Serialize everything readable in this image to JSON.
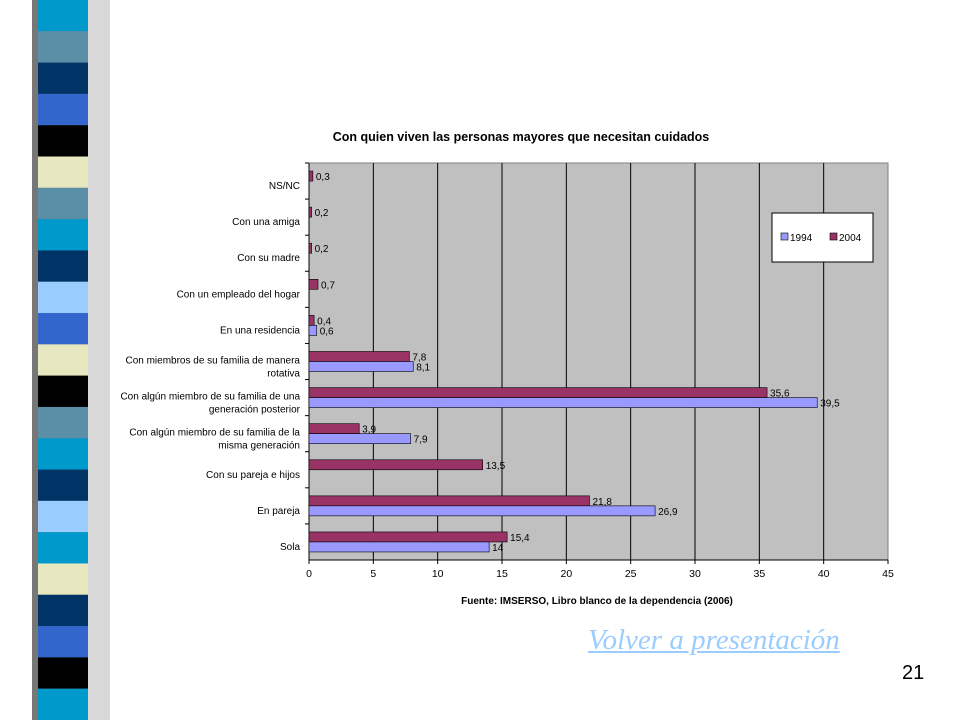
{
  "slide": {
    "link_label": "Volver a presentación",
    "page_number": "21",
    "decorative_strip_colors": [
      "#0099cc",
      "#5b8fa8",
      "#003366",
      "#3366cc",
      "#000000",
      "#e8e8c0",
      "#5b8fa8",
      "#0099cc",
      "#003366",
      "#99ccff",
      "#3366cc",
      "#e8e8c0",
      "#000000",
      "#5b8fa8",
      "#0099cc",
      "#003366",
      "#99ccff",
      "#0099cc",
      "#e8e8c0",
      "#003366",
      "#3366cc",
      "#000000",
      "#0099cc"
    ]
  },
  "chart_data": {
    "type": "bar",
    "orientation": "horizontal",
    "title": "Con quien viven las personas mayores que necesitan cuidados",
    "source_note": "Fuente: IMSERSO, Libro blanco de la dependencia (2006)",
    "categories": [
      [
        "NS/NC"
      ],
      [
        "Con una amiga"
      ],
      [
        "Con su madre"
      ],
      [
        "Con un empleado del hogar"
      ],
      [
        "En una residencia"
      ],
      [
        "Con miembros de su familia de manera",
        "rotativa"
      ],
      [
        "Con algún miembro de su familia de una",
        "generación posterior"
      ],
      [
        "Con algún miembro de su familia de la",
        "misma generación"
      ],
      [
        "Con su pareja e hijos"
      ],
      [
        "En pareja"
      ],
      [
        "Sola"
      ]
    ],
    "series": [
      {
        "name": "1994",
        "color": "#9999ff",
        "values": [
          null,
          null,
          null,
          null,
          0.6,
          8.1,
          39.5,
          7.9,
          null,
          26.9,
          14
        ]
      },
      {
        "name": "2004",
        "color": "#993366",
        "values": [
          0.3,
          0.2,
          0.2,
          0.7,
          0.4,
          7.8,
          35.6,
          3.9,
          13.5,
          21.8,
          15.4
        ]
      }
    ],
    "value_labels": {
      "1994": [
        null,
        null,
        null,
        null,
        "0,6",
        "8,1",
        "39,5",
        "7,9",
        null,
        "26,9",
        "14"
      ],
      "2004": [
        "0,3",
        "0,2",
        "0,2",
        "0,7",
        "0,4",
        "7,8",
        "35,6",
        "3,9",
        "13,5",
        "21,8",
        "15,4"
      ]
    },
    "xlim": [
      0,
      45
    ],
    "x_ticks": [
      0,
      5,
      10,
      15,
      20,
      25,
      30,
      35,
      40,
      45
    ],
    "grid": true,
    "plot_background": "#c0c0c0",
    "legend_position": "top-right"
  }
}
